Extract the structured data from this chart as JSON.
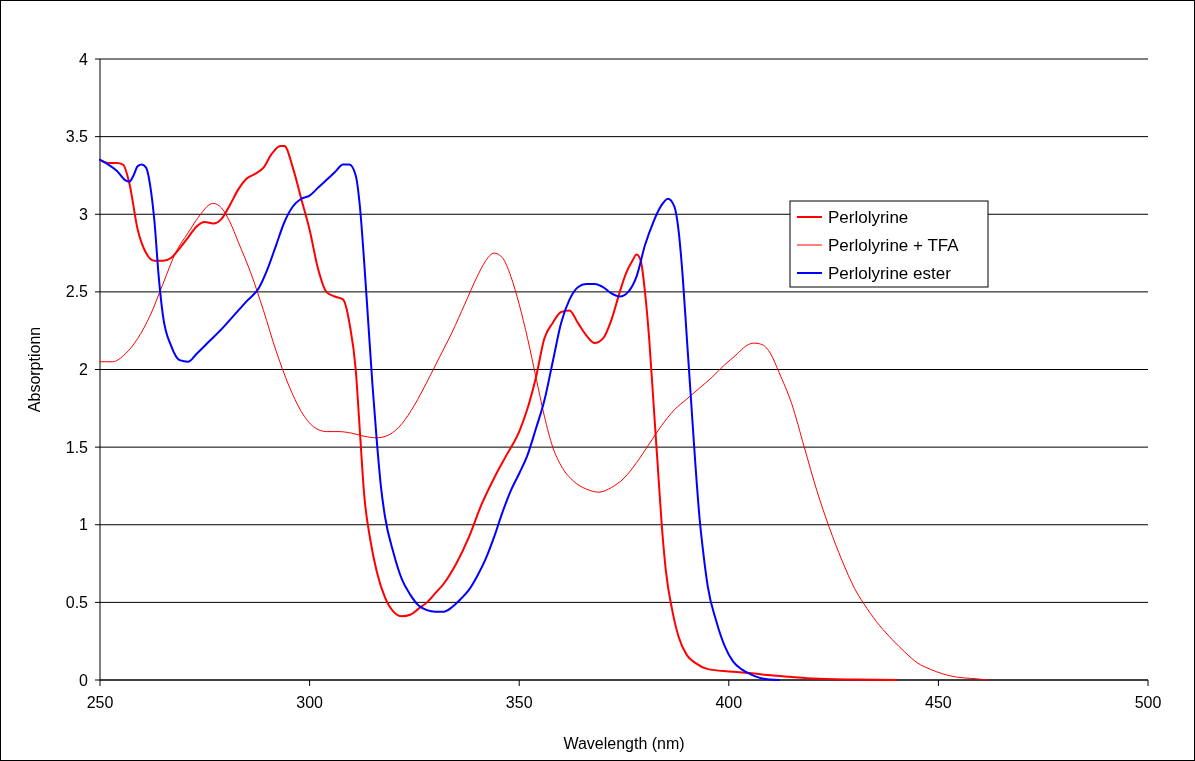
{
  "chart_data": {
    "type": "line",
    "xlabel": "Wavelength (nm)",
    "ylabel": "Absorptionn",
    "xlim": [
      250,
      500
    ],
    "xticks": [
      250,
      300,
      350,
      400,
      450,
      500
    ],
    "ylim": [
      0,
      4
    ],
    "yticks": [
      0,
      0.5,
      1,
      1.5,
      2,
      2.5,
      3,
      3.5,
      4
    ],
    "grid": "y",
    "legend": "right",
    "marker": "none",
    "line_style": "solid",
    "series": [
      {
        "name": "Perlolyrine",
        "color": "#ff0000",
        "x": [
          250,
          252,
          254,
          255.5,
          257,
          259,
          261,
          263,
          265,
          267,
          269,
          271,
          273,
          275,
          277,
          279,
          281,
          283,
          285,
          287,
          289,
          291,
          293,
          294,
          296,
          298,
          300,
          302,
          304,
          306,
          308,
          309.5,
          311,
          312,
          313,
          314.5,
          316,
          318,
          320,
          322,
          324,
          326,
          328,
          330,
          332,
          335,
          338,
          341,
          344,
          347,
          350,
          352,
          354,
          356,
          358,
          360,
          362,
          364,
          366,
          368,
          370,
          372,
          374,
          375.5,
          377,
          378,
          379,
          380,
          381,
          382,
          383,
          384,
          385,
          386.5,
          388,
          390,
          392,
          395,
          400,
          405,
          410,
          415,
          420,
          430,
          440
        ],
        "values": [
          3.35,
          3.33,
          3.33,
          3.32,
          3.2,
          2.9,
          2.75,
          2.7,
          2.7,
          2.72,
          2.78,
          2.85,
          2.92,
          2.95,
          2.94,
          2.97,
          3.06,
          3.16,
          3.23,
          3.26,
          3.3,
          3.39,
          3.44,
          3.44,
          3.3,
          3.1,
          2.9,
          2.65,
          2.5,
          2.47,
          2.45,
          2.3,
          2,
          1.6,
          1.2,
          0.9,
          0.7,
          0.53,
          0.44,
          0.41,
          0.42,
          0.46,
          0.5,
          0.56,
          0.62,
          0.75,
          0.92,
          1.13,
          1.3,
          1.45,
          1.6,
          1.75,
          1.95,
          2.2,
          2.3,
          2.37,
          2.38,
          2.3,
          2.22,
          2.17,
          2.2,
          2.32,
          2.5,
          2.62,
          2.7,
          2.74,
          2.7,
          2.5,
          2.2,
          1.8,
          1.4,
          1,
          0.7,
          0.45,
          0.28,
          0.16,
          0.11,
          0.07,
          0.055,
          0.045,
          0.03,
          0.02,
          0.01,
          0.003,
          0
        ]
      },
      {
        "name": "Perlolyrine + TFA",
        "color": "#ff0000",
        "x": [
          250,
          253,
          256,
          259,
          262,
          265,
          268,
          271,
          274,
          276,
          277,
          279,
          281,
          283,
          286,
          289,
          292,
          295,
          298,
          301,
          304,
          307,
          310,
          313,
          316,
          319,
          322,
          325,
          328,
          331,
          334,
          337,
          340,
          342,
          344,
          346,
          348,
          350,
          352,
          354,
          356,
          358,
          360,
          363,
          366,
          369,
          372,
          375,
          378,
          381,
          384,
          387,
          390,
          393,
          396,
          399,
          402,
          404,
          406,
          408,
          410,
          412,
          415,
          418,
          421,
          424,
          427,
          430,
          433,
          436,
          439,
          442,
          445,
          448,
          451,
          454,
          458,
          462
        ],
        "values": [
          2.05,
          2.05,
          2.1,
          2.2,
          2.35,
          2.55,
          2.75,
          2.88,
          3,
          3.06,
          3.07,
          3.04,
          2.95,
          2.82,
          2.62,
          2.38,
          2.12,
          1.9,
          1.73,
          1.63,
          1.6,
          1.6,
          1.59,
          1.57,
          1.56,
          1.58,
          1.65,
          1.77,
          1.92,
          2.08,
          2.24,
          2.42,
          2.6,
          2.7,
          2.75,
          2.72,
          2.6,
          2.42,
          2.2,
          1.95,
          1.7,
          1.5,
          1.38,
          1.28,
          1.23,
          1.21,
          1.24,
          1.3,
          1.4,
          1.52,
          1.64,
          1.74,
          1.81,
          1.88,
          1.95,
          2.03,
          2.1,
          2.15,
          2.17,
          2.16,
          2.1,
          1.98,
          1.78,
          1.5,
          1.22,
          0.98,
          0.77,
          0.59,
          0.46,
          0.35,
          0.26,
          0.18,
          0.11,
          0.07,
          0.04,
          0.02,
          0.01,
          0
        ]
      },
      {
        "name": "Perlolyrine ester",
        "color": "#0000ff",
        "x": [
          250,
          252,
          254,
          256,
          257,
          258,
          259,
          260,
          261,
          262,
          263,
          264,
          265,
          267,
          269,
          271,
          273,
          276,
          279,
          282,
          285,
          288,
          290,
          292,
          294,
          296,
          298,
          300,
          302,
          304,
          306,
          308,
          309.5,
          311,
          312,
          313,
          314,
          315,
          316,
          317,
          318,
          320,
          322,
          324,
          326,
          328,
          330,
          332,
          334,
          336,
          338,
          340,
          342,
          344,
          346,
          348,
          350,
          352,
          354,
          356,
          358,
          360,
          362,
          364,
          366,
          368,
          370,
          372,
          374,
          376,
          378,
          380,
          382,
          384,
          385.5,
          387,
          388,
          389,
          390,
          391,
          392,
          393,
          394,
          395,
          397,
          399,
          401,
          403,
          405,
          408,
          412
        ],
        "values": [
          3.35,
          3.32,
          3.28,
          3.22,
          3.21,
          3.25,
          3.31,
          3.32,
          3.3,
          3.18,
          2.95,
          2.6,
          2.35,
          2.15,
          2.06,
          2.05,
          2.1,
          2.18,
          2.26,
          2.35,
          2.44,
          2.53,
          2.65,
          2.8,
          2.95,
          3.05,
          3.1,
          3.12,
          3.17,
          3.22,
          3.27,
          3.32,
          3.32,
          3.25,
          3.05,
          2.7,
          2.3,
          1.9,
          1.55,
          1.25,
          1.05,
          0.82,
          0.65,
          0.55,
          0.48,
          0.45,
          0.44,
          0.44,
          0.47,
          0.52,
          0.58,
          0.67,
          0.78,
          0.92,
          1.08,
          1.22,
          1.33,
          1.45,
          1.62,
          1.8,
          2.05,
          2.3,
          2.45,
          2.53,
          2.55,
          2.55,
          2.53,
          2.49,
          2.47,
          2.5,
          2.6,
          2.8,
          2.95,
          3.06,
          3.1,
          3.05,
          2.9,
          2.6,
          2.2,
          1.8,
          1.4,
          1.05,
          0.8,
          0.6,
          0.38,
          0.22,
          0.12,
          0.07,
          0.04,
          0.01,
          0
        ]
      }
    ]
  }
}
